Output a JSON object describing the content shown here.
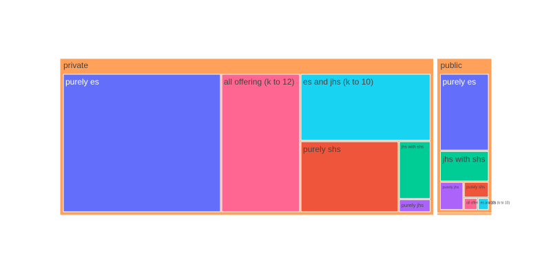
{
  "chart_data": {
    "type": "treemap",
    "colors": {
      "group": "#ffa15a",
      "purely es": "#636efa",
      "all offering (k to 12)": "#ff6692",
      "es and jhs (k to 10)": "#19d3f3",
      "purely shs": "#ef553b",
      "jhs with shs": "#00cc96",
      "purely jhs": "#ab63fa",
      "group_label": "#444444",
      "tile_label_light": "#ffffff",
      "tile_label_dark": "#444444"
    },
    "groups": [
      {
        "name": "private",
        "children": [
          {
            "name": "purely es",
            "value": 5900
          },
          {
            "name": "all offering (k to 12)",
            "value": 2950
          },
          {
            "name": "es and jhs (k to 10)",
            "value": 2360
          },
          {
            "name": "purely shs",
            "value": 1885
          },
          {
            "name": "jhs with shs",
            "value": 500
          },
          {
            "name": "purely jhs",
            "value": 115
          }
        ]
      },
      {
        "name": "public",
        "children": [
          {
            "name": "purely es",
            "value": 1190
          },
          {
            "name": "jhs with shs",
            "value": 476
          },
          {
            "name": "purely jhs",
            "value": 213
          },
          {
            "name": "purely shs",
            "value": 128
          },
          {
            "name": "all offering (k to 12)",
            "value": 55
          },
          {
            "name": "es and jhs (k to 10)",
            "value": 44
          }
        ]
      },
      {
        "name": "",
        "children": [
          {
            "name": "",
            "value": 30
          }
        ]
      }
    ]
  }
}
